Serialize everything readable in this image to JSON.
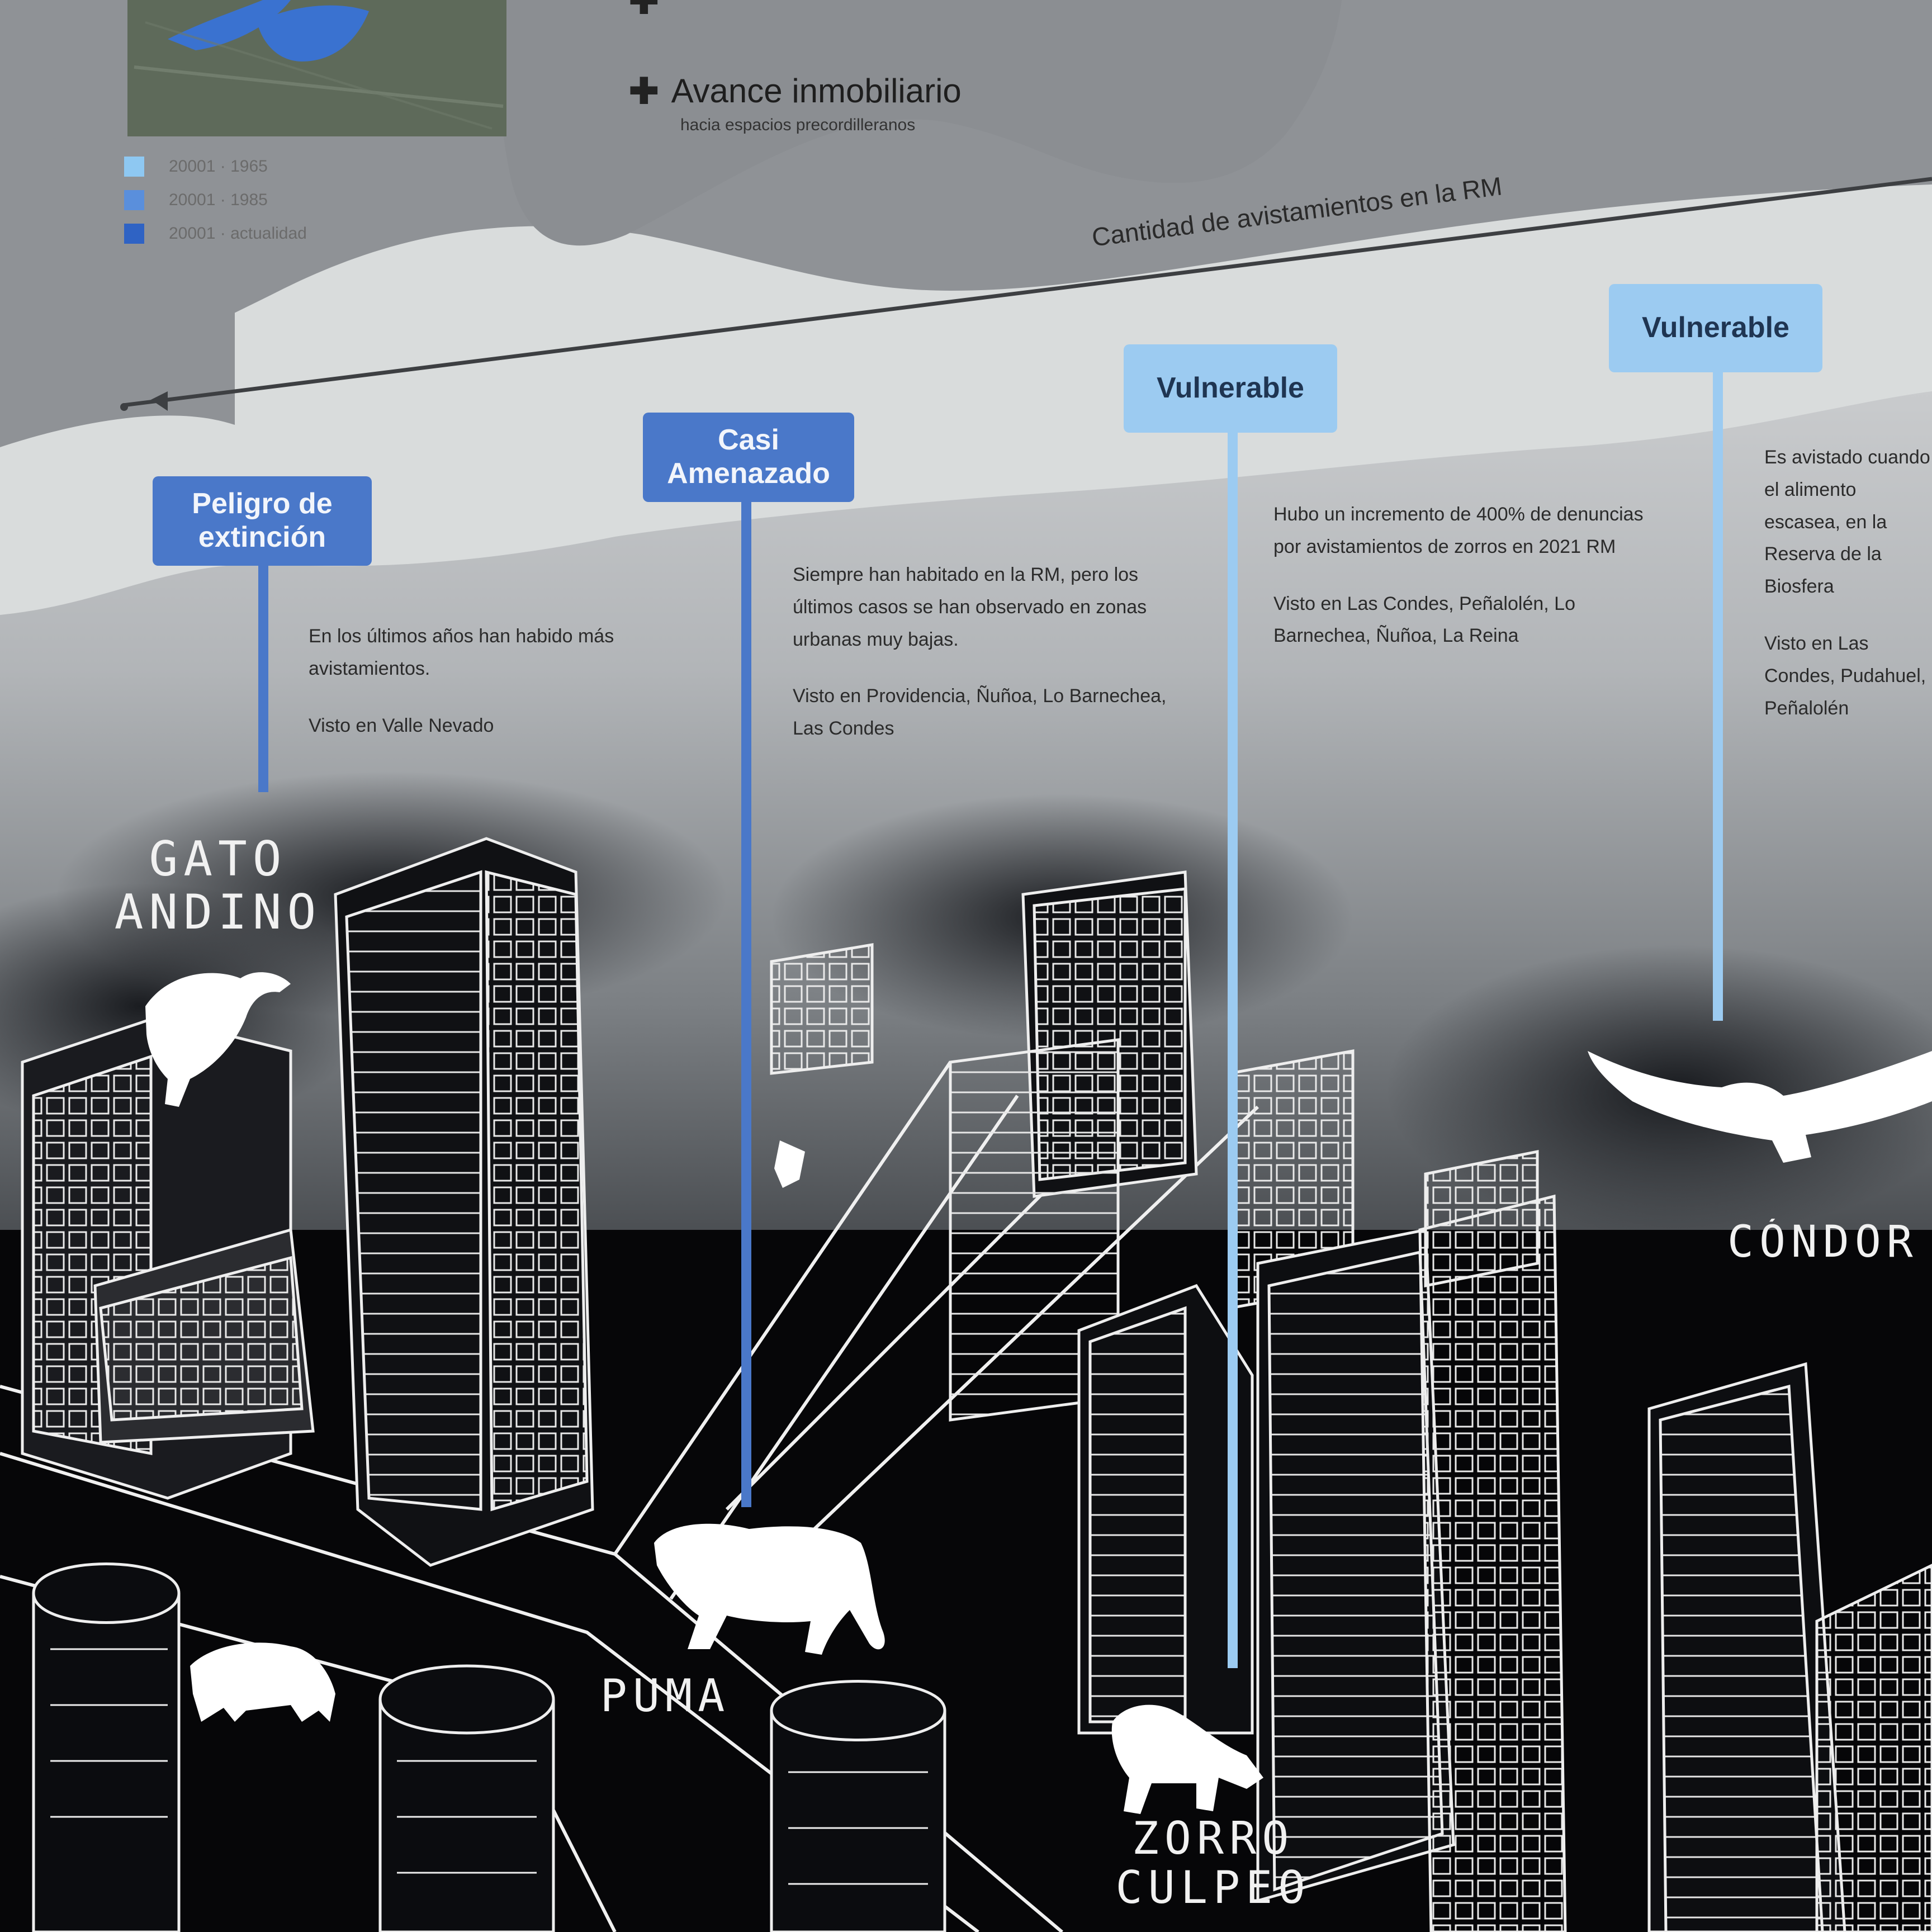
{
  "map_legend": {
    "rows": [
      {
        "label": "20001 · 1965",
        "color": "#8ec8f2"
      },
      {
        "label": "20001 · 1985",
        "color": "#5a8fdc"
      },
      {
        "label": "20001 · actualidad",
        "color": "#2f63c4"
      }
    ]
  },
  "legend_key": {
    "title": "Avance inmobiliario",
    "subtitle": "hacia espacios precordilleranos"
  },
  "timeline": {
    "label": "Cantidad de avistamientos en la RM"
  },
  "species": [
    {
      "status": "Peligro de extinción",
      "status_lines": [
        "Peligro de",
        "extinción"
      ],
      "tag_style": "dark",
      "animal": "GATO ANDINO",
      "animal_lines": [
        "GATO",
        "ANDINO"
      ],
      "text": "En los últimos años han habido más avistamientos.",
      "location": "Visto en Valle Nevado"
    },
    {
      "status": "Casi Amenazado",
      "status_lines": [
        "Casi",
        "Amenazado"
      ],
      "tag_style": "dark",
      "animal": "PUMA",
      "animal_lines": [
        "PUMA"
      ],
      "text": "Siempre han habitado en la RM, pero los últimos casos se han observado en zonas urbanas muy bajas.",
      "location": "Visto en Providencia, Ñuñoa, Lo Barnechea, Las Condes"
    },
    {
      "status": "Vulnerable",
      "status_lines": [
        "Vulnerable"
      ],
      "tag_style": "light",
      "animal": "ZORRO CULPEO",
      "animal_lines": [
        "ZORRO",
        "CULPEO"
      ],
      "text": "Hubo un incremento de 400% de denuncias por avistamientos de zorros en 2021 RM",
      "location": "Visto en Las Condes, Peñalolén, Lo Barnechea, Ñuñoa, La Reina"
    },
    {
      "status": "Vulnerable",
      "status_lines": [
        "Vulnerable"
      ],
      "tag_style": "light",
      "animal": "CÓNDOR",
      "animal_lines": [
        "CÓNDOR"
      ],
      "text": "Es avistado cuando el alimento escasea, en la Reserva de la Biosfera",
      "location": "Visto en Las Condes, Pudahuel, Peñalolén"
    }
  ]
}
